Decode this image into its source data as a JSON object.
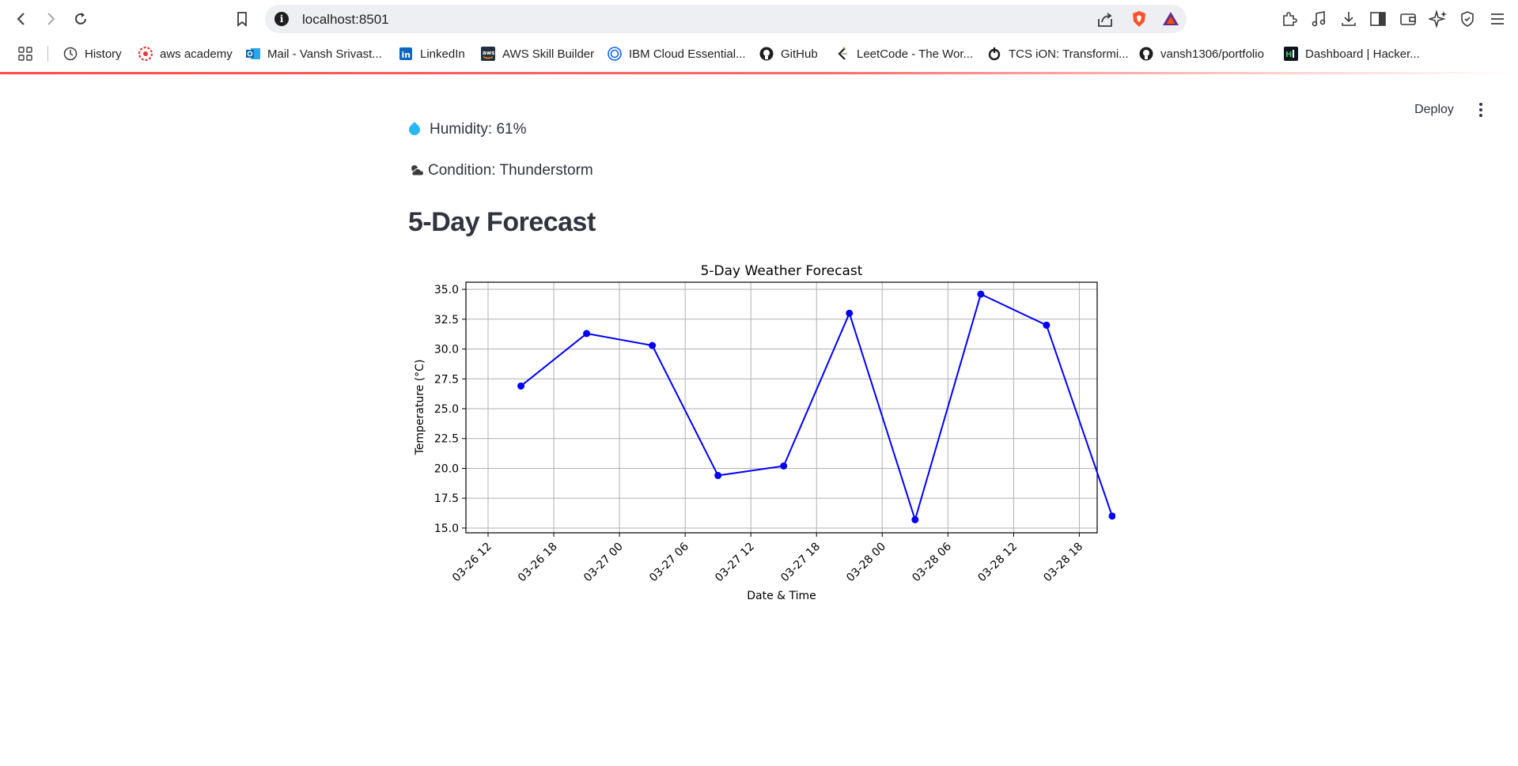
{
  "browser": {
    "url": "localhost:8501",
    "bookmarks": [
      {
        "label": "History",
        "icon": "history-icon"
      },
      {
        "label": "aws academy",
        "icon": "aws-academy-icon"
      },
      {
        "label": "Mail - Vansh Srivast...",
        "icon": "outlook-icon"
      },
      {
        "label": "LinkedIn",
        "icon": "linkedin-icon"
      },
      {
        "label": "AWS Skill Builder",
        "icon": "aws-icon"
      },
      {
        "label": "IBM Cloud Essential...",
        "icon": "ibm-icon"
      },
      {
        "label": "GitHub",
        "icon": "github-icon"
      },
      {
        "label": "LeetCode - The Wor...",
        "icon": "leetcode-icon"
      },
      {
        "label": "TCS iON: Transformi...",
        "icon": "tcs-icon"
      },
      {
        "label": "vansh1306/portfolio",
        "icon": "github-icon"
      },
      {
        "label": "Dashboard | Hacker...",
        "icon": "hackerrank-icon"
      }
    ]
  },
  "app": {
    "deploy_label": "Deploy",
    "humidity_text": "Humidity: 61%",
    "condition_text": "Condition: Thunderstorm",
    "section_heading": "5-Day Forecast"
  },
  "colors": {
    "accent": "#ff4b4b",
    "line": "#0000ff",
    "text": "#31333f"
  },
  "chart_data": {
    "type": "line",
    "title": "5-Day Weather Forecast",
    "xlabel": "Date & Time",
    "ylabel": "Temperature (°C)",
    "x": [
      "03-26 15",
      "03-26 21",
      "03-27 03",
      "03-27 09",
      "03-27 15",
      "03-27 21",
      "03-28 03",
      "03-28 09",
      "03-28 15",
      "03-28 21"
    ],
    "xticks": [
      "03-26 12",
      "03-26 18",
      "03-27 00",
      "03-27 06",
      "03-27 12",
      "03-27 18",
      "03-28 00",
      "03-28 06",
      "03-28 12",
      "03-28 18"
    ],
    "series": [
      {
        "values": [
          26.9,
          31.3,
          30.3,
          19.4,
          20.2,
          33.0,
          15.7,
          34.6,
          32.0,
          16.0
        ]
      }
    ],
    "yticks": [
      "15.0",
      "17.5",
      "20.0",
      "22.5",
      "25.0",
      "27.5",
      "30.0",
      "32.5",
      "35.0"
    ],
    "ylim": [
      14.6,
      35.6
    ],
    "grid": true,
    "marker": "o"
  }
}
